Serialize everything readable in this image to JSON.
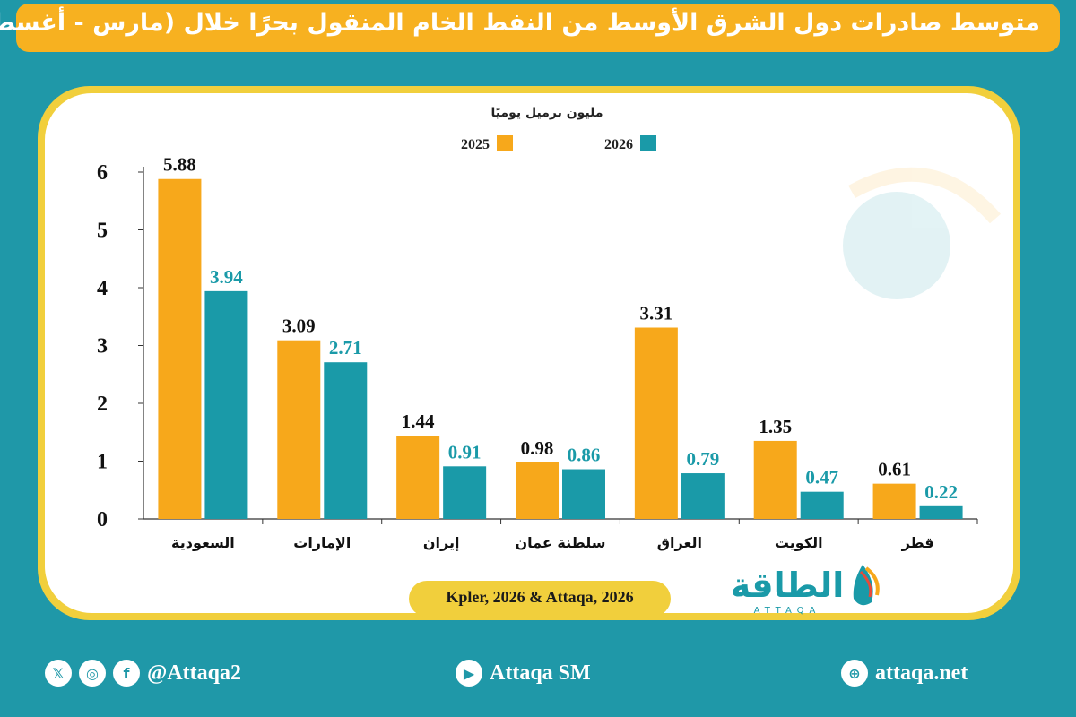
{
  "title": "متوسط صادرات دول الشرق الأوسط من النفط الخام المنقول بحرًا خلال (مارس - أغسطس)",
  "source": "Kpler, 2026 & Attaqa, 2026",
  "logo": {
    "arabic": "الطاقة",
    "latin": "ATTAQA"
  },
  "footer": {
    "social_handle": "@Attaqa2",
    "youtube": "Attaqa SM",
    "website": "attaqa.net",
    "icons": [
      "x-icon",
      "instagram-icon",
      "facebook-icon",
      "youtube-icon",
      "globe-icon"
    ]
  },
  "colors": {
    "series_2025": "#f7a81b",
    "series_2026": "#1a9aa8",
    "accent_border": "#f1cf3c",
    "background": "#1f98a8"
  },
  "chart_data": {
    "type": "bar",
    "ylabel": "مليون برميل يوميًا",
    "ylim": [
      0,
      6
    ],
    "yticks": [
      0,
      1,
      2,
      3,
      4,
      5,
      6
    ],
    "legend_position": "top",
    "categories": [
      "السعودية",
      "الإمارات",
      "إيران",
      "سلطنة عمان",
      "العراق",
      "الكويت",
      "قطر"
    ],
    "series": [
      {
        "name": "2025",
        "color": "#f7a81b",
        "values": [
          5.88,
          3.09,
          1.44,
          0.98,
          3.31,
          1.35,
          0.61
        ]
      },
      {
        "name": "2026",
        "color": "#1a9aa8",
        "values": [
          3.94,
          2.71,
          0.91,
          0.86,
          0.79,
          0.47,
          0.22
        ]
      }
    ]
  }
}
